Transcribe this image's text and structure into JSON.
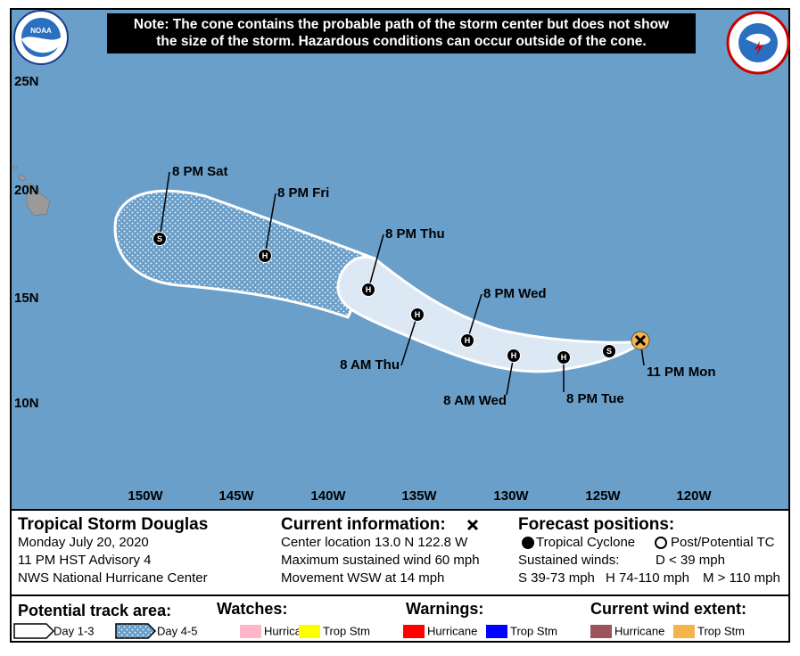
{
  "header": {
    "note_lines": [
      "Note: The cone contains the probable path of the storm center but does not show",
      "the size of the storm. Hazardous conditions can occur outside of the cone."
    ],
    "noaa_logo": "NOAA"
  },
  "map": {
    "lat_labels": [
      "25N",
      "20N",
      "15N",
      "10N"
    ],
    "lon_labels": [
      "150W",
      "145W",
      "140W",
      "135W",
      "130W",
      "125W",
      "120W"
    ],
    "track": [
      {
        "time": "11 PM Mon"
      },
      {
        "symbol": "S"
      },
      {
        "symbol": "H",
        "time": "8 PM Tue"
      },
      {
        "symbol": "H",
        "time": "8 AM Wed"
      },
      {
        "symbol": "H",
        "time": "8 PM Wed"
      },
      {
        "symbol": "H",
        "time": "8 AM Thu"
      },
      {
        "symbol": "H",
        "time": "8 PM Thu"
      },
      {
        "symbol": "H",
        "time": "8 PM Fri"
      },
      {
        "symbol": "S",
        "time": "8 PM Sat"
      }
    ]
  },
  "info": {
    "storm": {
      "name": "Tropical Storm Douglas",
      "date": "Monday July 20, 2020",
      "advisory": "11 PM HST Advisory 4",
      "center": "NWS National Hurricane Center"
    },
    "current": {
      "title": "Current information:",
      "lines": [
        "Center location 13.0 N 122.8 W",
        "Maximum sustained wind 60 mph",
        "Movement WSW at 14 mph"
      ]
    },
    "forecast": {
      "title": "Forecast positions:",
      "tropical": "Tropical Cyclone",
      "post": "Post/Potential TC",
      "winds_label": "Sustained winds:",
      "d": "D < 39 mph",
      "s": "S 39-73 mph",
      "h": "H 74-110 mph",
      "m": "M > 110 mph"
    }
  },
  "legend": {
    "track_area": {
      "title": "Potential track area:",
      "day13": "Day 1-3",
      "day45": "Day 4-5"
    },
    "watches": {
      "title": "Watches:",
      "items": [
        {
          "label": "Hurricane",
          "color": "#ffb6c8"
        },
        {
          "label": "Trop Stm",
          "color": "#ffff00"
        }
      ]
    },
    "warnings": {
      "title": "Warnings:",
      "items": [
        {
          "label": "Hurricane",
          "color": "#ff0000"
        },
        {
          "label": "Trop Stm",
          "color": "#0000ff"
        }
      ]
    },
    "wind_extent": {
      "title": "Current wind extent:",
      "items": [
        {
          "label": "Hurricane",
          "color": "#9c5458"
        },
        {
          "label": "Trop Stm",
          "color": "#f4b44c"
        }
      ]
    }
  }
}
